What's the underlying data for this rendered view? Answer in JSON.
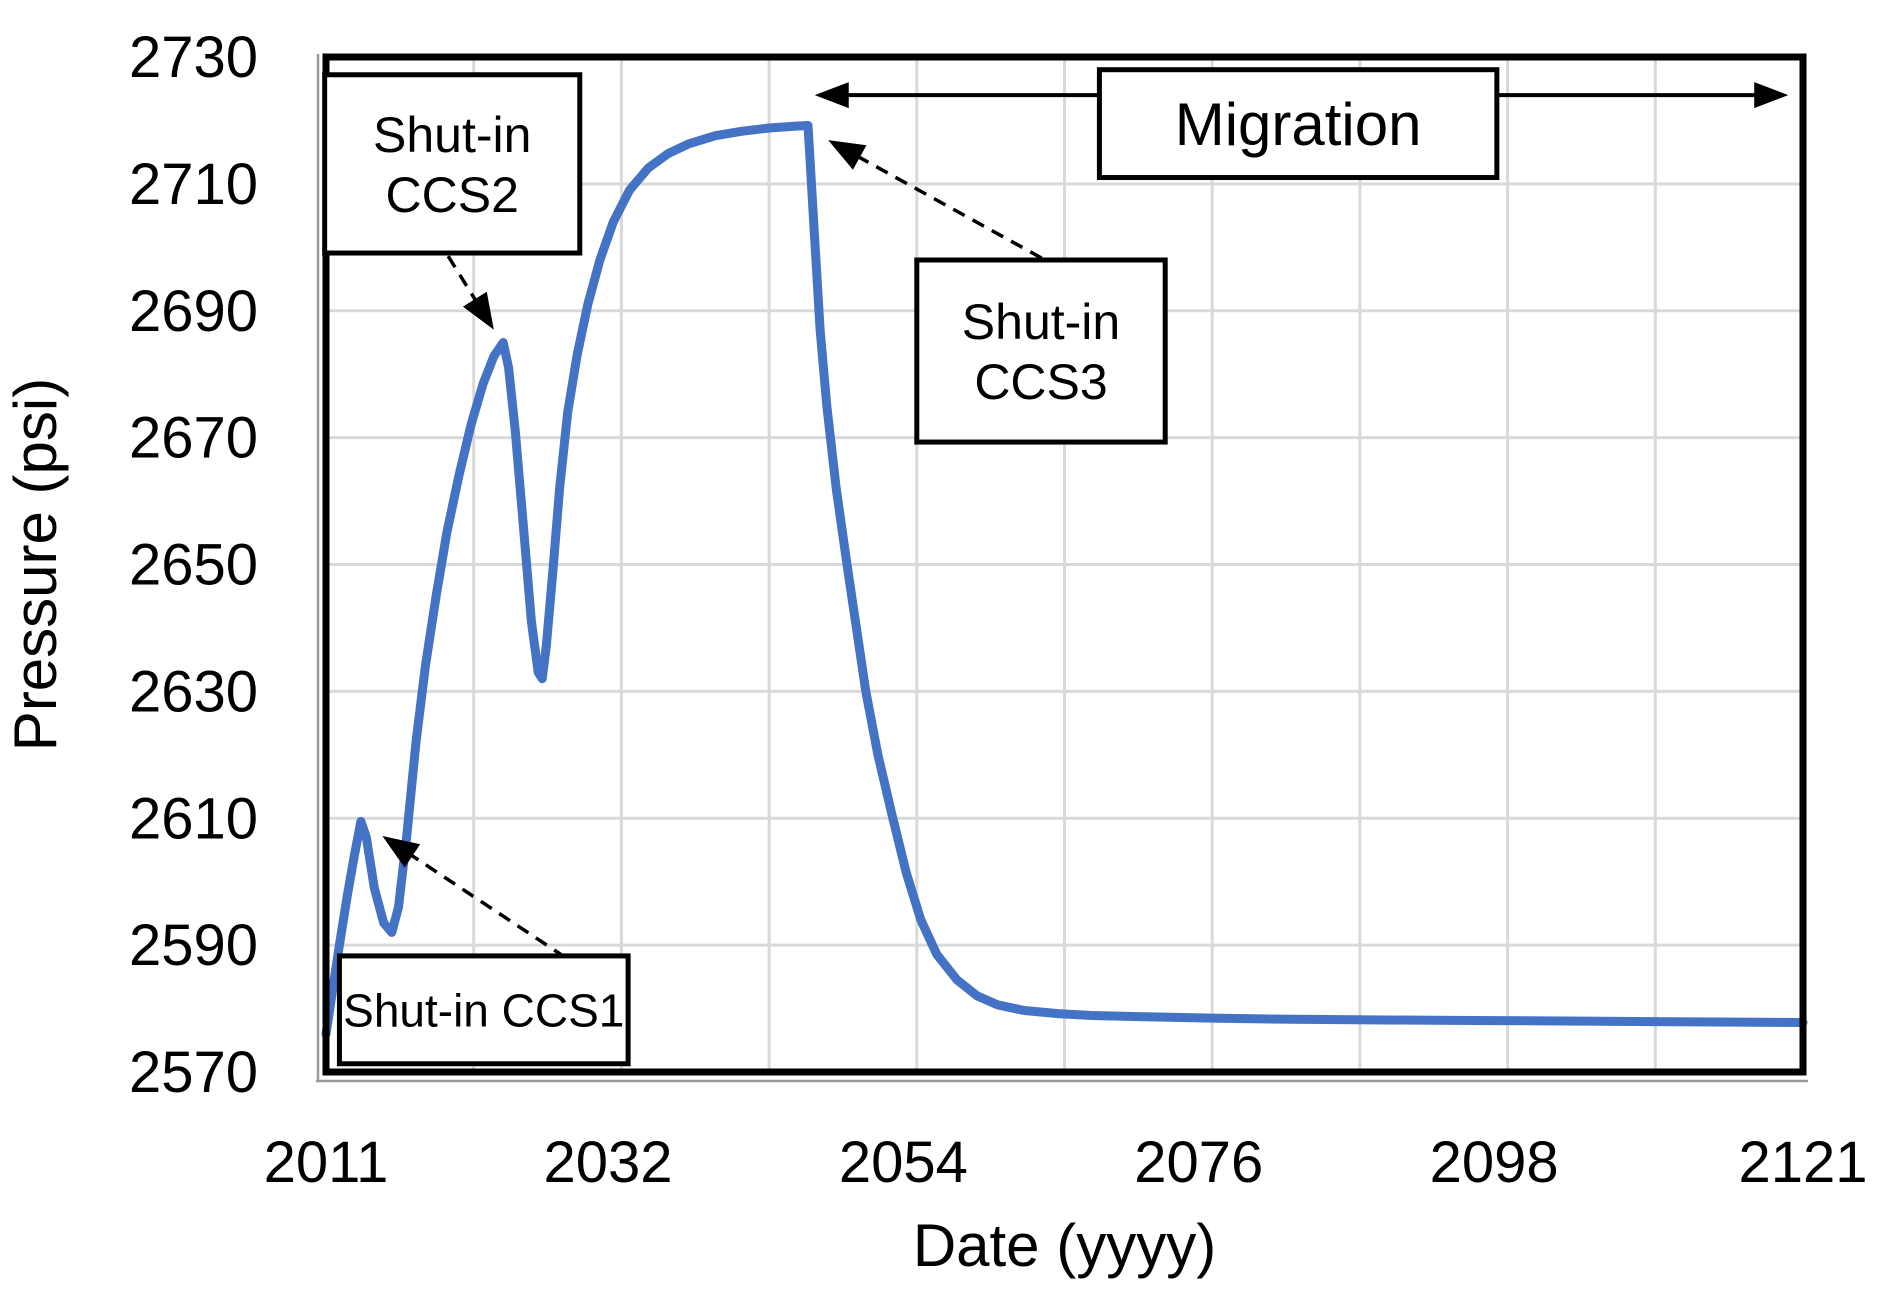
{
  "chart_data": {
    "type": "line",
    "title": "",
    "xlabel": "Date (yyyy)",
    "ylabel": "Pressure (psi)",
    "xlim": [
      2011,
      2121
    ],
    "ylim": [
      2570,
      2730
    ],
    "x_ticks": [
      2011,
      2032,
      2054,
      2076,
      2098,
      2121
    ],
    "y_ticks": [
      2570,
      2590,
      2610,
      2630,
      2650,
      2670,
      2690,
      2710,
      2730
    ],
    "x_gridlines": [
      2022,
      2033,
      2044,
      2055,
      2066,
      2077,
      2088,
      2099,
      2110
    ],
    "grid_on": true,
    "legend": "none",
    "line_color": "#4472C4",
    "grid_color": "#D9D9D9",
    "axis_color": "#000000",
    "series": [
      {
        "name": "Pressure",
        "points": [
          [
            2011.0,
            2576
          ],
          [
            2011.5,
            2583
          ],
          [
            2012.0,
            2590
          ],
          [
            2012.6,
            2598
          ],
          [
            2013.1,
            2604
          ],
          [
            2013.6,
            2609.5
          ],
          [
            2014.0,
            2607
          ],
          [
            2014.6,
            2599
          ],
          [
            2015.3,
            2593.5
          ],
          [
            2015.9,
            2592
          ],
          [
            2016.4,
            2596
          ],
          [
            2017.0,
            2607
          ],
          [
            2017.7,
            2622
          ],
          [
            2018.4,
            2634
          ],
          [
            2019.2,
            2645
          ],
          [
            2020.0,
            2655
          ],
          [
            2020.9,
            2664
          ],
          [
            2021.8,
            2672
          ],
          [
            2022.7,
            2678.5
          ],
          [
            2023.5,
            2682.8
          ],
          [
            2024.2,
            2685
          ],
          [
            2024.6,
            2681
          ],
          [
            2025.1,
            2671
          ],
          [
            2025.7,
            2656
          ],
          [
            2026.3,
            2641
          ],
          [
            2026.8,
            2633
          ],
          [
            2027.1,
            2632
          ],
          [
            2027.4,
            2637
          ],
          [
            2027.9,
            2649
          ],
          [
            2028.4,
            2662
          ],
          [
            2029.0,
            2674
          ],
          [
            2029.7,
            2683
          ],
          [
            2030.5,
            2691
          ],
          [
            2031.4,
            2698
          ],
          [
            2032.4,
            2704
          ],
          [
            2033.6,
            2709
          ],
          [
            2035.0,
            2712.5
          ],
          [
            2036.5,
            2714.8
          ],
          [
            2038.0,
            2716.3
          ],
          [
            2040.0,
            2717.6
          ],
          [
            2042.0,
            2718.3
          ],
          [
            2044.0,
            2718.8
          ],
          [
            2046.0,
            2719.1
          ],
          [
            2046.9,
            2719.2
          ],
          [
            2047.1,
            2712
          ],
          [
            2047.4,
            2701
          ],
          [
            2047.8,
            2687
          ],
          [
            2048.3,
            2675
          ],
          [
            2049.0,
            2662
          ],
          [
            2049.8,
            2650
          ],
          [
            2050.5,
            2640
          ],
          [
            2051.2,
            2630
          ],
          [
            2052.1,
            2620
          ],
          [
            2053.1,
            2611
          ],
          [
            2054.2,
            2601.5
          ],
          [
            2055.3,
            2594
          ],
          [
            2056.5,
            2588.5
          ],
          [
            2058.0,
            2584.5
          ],
          [
            2059.5,
            2582
          ],
          [
            2061.0,
            2580.6
          ],
          [
            2063.0,
            2579.7
          ],
          [
            2065.5,
            2579.2
          ],
          [
            2068.0,
            2578.9
          ],
          [
            2072.0,
            2578.7
          ],
          [
            2077.0,
            2578.5
          ],
          [
            2083.0,
            2578.3
          ],
          [
            2090.0,
            2578.2
          ],
          [
            2098.0,
            2578.1
          ],
          [
            2106.0,
            2578.0
          ],
          [
            2113.0,
            2577.9
          ],
          [
            2121.0,
            2577.8
          ]
        ]
      }
    ],
    "annotations": {
      "boxes": [
        {
          "id": "shut-in-ccs2",
          "label_lines": [
            "Shut-in",
            "CCS2"
          ],
          "x0": 2010.9,
          "x1": 2029.9,
          "y0": 2699.1,
          "y1": 2727.2
        },
        {
          "id": "shut-in-ccs3",
          "label_lines": [
            "Shut-in",
            "CCS3"
          ],
          "x0": 2055.0,
          "x1": 2073.5,
          "y0": 2669.3,
          "y1": 2698.0
        },
        {
          "id": "shut-in-ccs1",
          "label_lines": [
            "Shut-in CCS1"
          ],
          "x0": 2012.0,
          "x1": 2033.5,
          "y0": 2571.3,
          "y1": 2588.3
        },
        {
          "id": "migration",
          "label_lines": [
            "Migration"
          ],
          "x0": 2068.6,
          "x1": 2098.2,
          "y0": 2711.0,
          "y1": 2728.0
        }
      ],
      "dashed_arrows": [
        {
          "id": "ccs1-pointer",
          "from": [
            2028.8,
            2588.1
          ],
          "to": [
            2015.2,
            2607.2
          ]
        },
        {
          "id": "ccs2-pointer",
          "from": [
            2020.1,
            2698.6
          ],
          "to": [
            2023.5,
            2687.0
          ]
        },
        {
          "id": "ccs3-pointer",
          "from": [
            2064.3,
            2698.3
          ],
          "to": [
            2048.4,
            2716.9
          ]
        }
      ],
      "double_arrow": {
        "id": "migration-span",
        "y": 2724,
        "x0": 2047.4,
        "x1": 2119.9
      }
    }
  }
}
